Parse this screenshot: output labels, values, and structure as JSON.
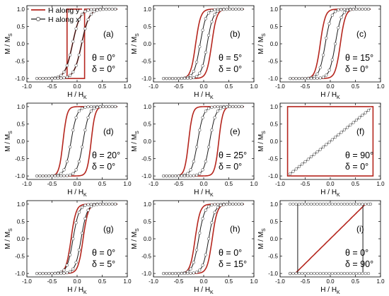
{
  "legend": {
    "series_y": "H along y",
    "series_x": "H along x",
    "color_y": "#b5261e",
    "color_x": "#1a1a1a"
  },
  "axis": {
    "xlabel_main": "H / H",
    "xlabel_sub": "K",
    "ylabel_main": "M / M",
    "ylabel_sub": "S",
    "xlim": [
      -1.0,
      1.0
    ],
    "ylim": [
      -1.1,
      1.1
    ],
    "xticks": [
      "-1.0",
      "-0.5",
      "0.0",
      "0.5",
      "1.0"
    ],
    "yticks": [
      "-1.0",
      "-0.5",
      "0.0",
      "0.5",
      "1.0"
    ]
  },
  "chart_data": [
    {
      "type": "line",
      "panel": "(a)",
      "theta": "θ = 0°",
      "delta": "δ = 0°",
      "series": [
        {
          "name": "H along y",
          "kind": "square",
          "hc": 0.08,
          "hk": 0.12,
          "xw": 0.1,
          "hc2": 0.09,
          "w2": 0.15
        },
        {
          "name": "H along x",
          "kind": "loop",
          "hc": 0.09,
          "w": 0.15
        }
      ]
    },
    {
      "type": "line",
      "panel": "(b)",
      "theta": "θ = 5°",
      "delta": "δ = 0°",
      "series": [
        {
          "name": "H along y",
          "kind": "loop",
          "hc": 0.16,
          "w": 0.1
        },
        {
          "name": "H along x",
          "kind": "loop",
          "hc": 0.07,
          "w": 0.12
        }
      ]
    },
    {
      "type": "line",
      "panel": "(c)",
      "theta": "θ = 15°",
      "delta": "δ = 0°",
      "series": [
        {
          "name": "H along y",
          "kind": "loop",
          "hc": 0.2,
          "w": 0.1
        },
        {
          "name": "H along x",
          "kind": "loop",
          "hc": 0.1,
          "w": 0.12
        }
      ]
    },
    {
      "type": "line",
      "panel": "(d)",
      "theta": "θ = 20°",
      "delta": "δ = 0°",
      "series": [
        {
          "name": "H along y",
          "kind": "loop",
          "hc": 0.28,
          "w": 0.08
        },
        {
          "name": "H along x",
          "kind": "loop",
          "hc": 0.12,
          "w": 0.12
        }
      ]
    },
    {
      "type": "line",
      "panel": "(e)",
      "theta": "θ = 25°",
      "delta": "δ = 0°",
      "series": [
        {
          "name": "H along y",
          "kind": "loop",
          "hc": 0.3,
          "w": 0.08
        },
        {
          "name": "H along x",
          "kind": "loop",
          "hc": 0.12,
          "w": 0.12
        }
      ]
    },
    {
      "type": "line",
      "panel": "(f)",
      "theta": "θ = 90°",
      "delta": "δ = 0°",
      "series": [
        {
          "name": "H along y",
          "kind": "box",
          "hc": 0.85,
          "hk": 1.0
        },
        {
          "name": "H along x",
          "kind": "ramp",
          "hk": 0.85
        }
      ]
    },
    {
      "type": "line",
      "panel": "(g)",
      "theta": "θ = 0°",
      "delta": "δ = 5°",
      "series": [
        {
          "name": "H along y",
          "kind": "loop",
          "hc": 0.12,
          "w": 0.1
        },
        {
          "name": "H along x",
          "kind": "loop",
          "hc": 0.08,
          "w": 0.12
        }
      ]
    },
    {
      "type": "line",
      "panel": "(h)",
      "theta": "θ = 0°",
      "delta": "δ = 15°",
      "series": [
        {
          "name": "H along y",
          "kind": "loop",
          "hc": 0.17,
          "w": 0.1
        },
        {
          "name": "H along x",
          "kind": "loop",
          "hc": 0.1,
          "w": 0.12
        }
      ]
    },
    {
      "type": "line",
      "panel": "(i)",
      "theta": "θ = 0°",
      "delta": "δ = 90°",
      "series": [
        {
          "name": "H along y",
          "kind": "ramp",
          "hk": 0.7
        },
        {
          "name": "H along x",
          "kind": "box",
          "hc": 0.65,
          "hk": 1.0
        }
      ]
    }
  ]
}
